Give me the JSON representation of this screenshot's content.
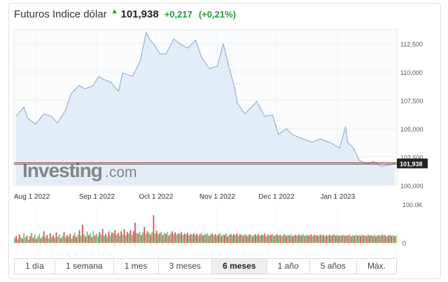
{
  "header": {
    "title": "Futuros Indice dólar",
    "price": "101,938",
    "change": "+0,217",
    "change_pct": "(+0,21%)",
    "up_color": "#1e9b35"
  },
  "watermark": {
    "main": "Investing",
    "suffix": ".com"
  },
  "tabs": [
    {
      "label": "1 día",
      "active": false
    },
    {
      "label": "1 semana",
      "active": false
    },
    {
      "label": "1 mes",
      "active": false
    },
    {
      "label": "3 meses",
      "active": false
    },
    {
      "label": "6 meses",
      "active": true
    },
    {
      "label": "1 año",
      "active": false
    },
    {
      "label": "5 años",
      "active": false
    },
    {
      "label": "Máx.",
      "active": false
    }
  ],
  "chart_data": [
    {
      "type": "area",
      "title": "",
      "ylim": [
        100000,
        113750
      ],
      "ytick_values": [
        100000,
        102500,
        105000,
        107500,
        110000,
        112500
      ],
      "ytick_labels": [
        "100,000",
        "102,500",
        "105,000",
        "107,500",
        "110,000",
        "112,500"
      ],
      "xlim": [
        "2022-07-21",
        "2023-01-31"
      ],
      "xticks": [
        {
          "date": "2022-08-01",
          "label": "Aug 1 2022"
        },
        {
          "date": "2022-09-01",
          "label": "Sep 1 2022"
        },
        {
          "date": "2022-10-01",
          "label": "Oct 1 2022"
        },
        {
          "date": "2022-11-01",
          "label": "Nov 1 2022"
        },
        {
          "date": "2022-12-01",
          "label": "Dec 1 2022"
        },
        {
          "date": "2023-01-01",
          "label": "Jan 1 2023"
        }
      ],
      "last_value": 101938,
      "last_label": "101,938",
      "line_color": "#8fb3d6",
      "fill_color": "#e3edf7",
      "series": [
        {
          "x": [
            "2022-07-22",
            "2022-07-26",
            "2022-07-28",
            "2022-08-01",
            "2022-08-05",
            "2022-08-09",
            "2022-08-12",
            "2022-08-16",
            "2022-08-19",
            "2022-08-23",
            "2022-08-26",
            "2022-08-30",
            "2022-09-02",
            "2022-09-05",
            "2022-09-08",
            "2022-09-12",
            "2022-09-14",
            "2022-09-16",
            "2022-09-19",
            "2022-09-23",
            "2022-09-26",
            "2022-09-28",
            "2022-09-30",
            "2022-10-03",
            "2022-10-06",
            "2022-10-10",
            "2022-10-13",
            "2022-10-17",
            "2022-10-21",
            "2022-10-24",
            "2022-10-28",
            "2022-11-01",
            "2022-11-04",
            "2022-11-07",
            "2022-11-10",
            "2022-11-11",
            "2022-11-15",
            "2022-11-21",
            "2022-11-25",
            "2022-11-29",
            "2022-12-02",
            "2022-12-06",
            "2022-12-09",
            "2022-12-13",
            "2022-12-16",
            "2022-12-19",
            "2022-12-23",
            "2022-12-28",
            "2023-01-02",
            "2023-01-05",
            "2023-01-06",
            "2023-01-09",
            "2023-01-12",
            "2023-01-16",
            "2023-01-19",
            "2023-01-23",
            "2023-01-27",
            "2023-01-30"
          ],
          "y": [
            106100,
            106900,
            105900,
            105400,
            106300,
            106100,
            105500,
            106600,
            108100,
            108800,
            108500,
            108800,
            109600,
            109300,
            109100,
            108300,
            109900,
            109800,
            109600,
            111000,
            113500,
            112800,
            112400,
            111600,
            111600,
            112900,
            112500,
            112100,
            112800,
            111300,
            110300,
            110500,
            112500,
            110400,
            108500,
            107300,
            106300,
            107400,
            106100,
            106200,
            104500,
            105000,
            104500,
            104200,
            104000,
            103800,
            104100,
            103800,
            103300,
            105200,
            103800,
            103300,
            102200,
            101900,
            102100,
            101700,
            101800,
            101940
          ]
        }
      ]
    },
    {
      "type": "bar",
      "title": "",
      "ylim": [
        0,
        100000
      ],
      "ytick_values": [
        0,
        100000
      ],
      "ytick_labels": [
        "0",
        "100.0K"
      ],
      "up_color": "#6fbf73",
      "down_color": "#d9534f",
      "values": [
        12000,
        18000,
        9000,
        22000,
        15000,
        11000,
        24000,
        14000,
        19000,
        8000,
        17000,
        26000,
        13000,
        21000,
        10000,
        16000,
        23000,
        12000,
        18000,
        30000,
        14000,
        20000,
        11000,
        25000,
        15000,
        19000,
        13000,
        27000,
        16000,
        22000,
        12000,
        18000,
        28000,
        14000,
        20000,
        17000,
        24000,
        11000,
        19000,
        26000,
        15000,
        21000,
        33000,
        18000,
        47000,
        22000,
        16000,
        29000,
        20000,
        25000,
        15000,
        31000,
        19000,
        24000,
        17000,
        28000,
        21000,
        36000,
        18000,
        23000,
        16000,
        30000,
        20000,
        27000,
        25000,
        33000,
        21000,
        26000,
        18000,
        30000,
        22000,
        35000,
        19000,
        28000,
        24000,
        33000,
        21000,
        30000,
        52000,
        26000,
        24000,
        29000,
        20000,
        27000,
        41000,
        23000,
        30000,
        26000,
        21000,
        28000,
        72000,
        24000,
        31000,
        22000,
        25000,
        29000,
        20000,
        26000,
        23000,
        28000,
        19000,
        24000,
        30000,
        22000,
        27000,
        21000,
        25000,
        23000,
        28000,
        20000,
        24000,
        22000,
        26000,
        19000,
        23000,
        21000,
        25000,
        20000,
        24000,
        18000,
        22000,
        26000,
        19000,
        23000,
        21000,
        25000,
        18000,
        22000,
        24000,
        20000,
        23000,
        19000,
        21000,
        25000,
        18000,
        22000,
        20000,
        24000,
        17000,
        21000,
        23000,
        19000,
        22000,
        20000,
        24000,
        18000,
        22000,
        21000,
        19000,
        23000,
        20000,
        18000,
        22000,
        21000,
        17000,
        20000,
        22000,
        19000,
        23000,
        18000,
        21000,
        20000,
        24000,
        17000,
        22000,
        19000,
        21000,
        23000,
        18000,
        20000,
        22000,
        19000,
        21000,
        17000,
        20000,
        23000,
        18000,
        21000,
        19000,
        22000,
        17000,
        20000,
        21000,
        18000,
        22000,
        19000,
        20000,
        23000,
        18000,
        21000,
        19000,
        20000,
        22000,
        18000,
        21000,
        19000,
        20000,
        18000,
        22000,
        19000,
        21000,
        17000,
        20000,
        19000,
        21000,
        18000,
        20000,
        22000,
        19000,
        21000,
        18000,
        20000,
        19000,
        21000,
        18000,
        20000,
        19000,
        22000,
        17000,
        20000,
        18000,
        21000,
        19000,
        20000,
        18000,
        21000,
        19000,
        20000,
        17000,
        21000,
        19000,
        20000,
        18000,
        21000,
        17000,
        19000,
        20000,
        18000,
        21000,
        19000,
        20000,
        16000,
        19000,
        21000,
        18000,
        20000,
        17000,
        19000
      ],
      "colors": [
        "up",
        "down",
        "up",
        "down",
        "up",
        "down",
        "up",
        "up",
        "down",
        "up",
        "down",
        "up",
        "down",
        "up",
        "down",
        "up",
        "up",
        "down",
        "up",
        "down",
        "up",
        "down",
        "up",
        "down",
        "up",
        "down",
        "up",
        "down",
        "up",
        "up",
        "down",
        "up",
        "down",
        "up",
        "down",
        "up",
        "down",
        "up",
        "down",
        "up",
        "down",
        "up",
        "down",
        "up",
        "down",
        "up",
        "down",
        "up",
        "down",
        "up",
        "down",
        "up",
        "down",
        "up",
        "up",
        "down",
        "up",
        "down",
        "up",
        "down",
        "up",
        "down",
        "up",
        "down",
        "up",
        "down",
        "up",
        "down",
        "up",
        "down",
        "up",
        "down",
        "up",
        "down",
        "up",
        "down",
        "up",
        "down",
        "down",
        "up",
        "down",
        "up",
        "down",
        "up",
        "down",
        "up",
        "down",
        "up",
        "down",
        "up",
        "down",
        "up",
        "down",
        "up",
        "down",
        "up",
        "down",
        "up",
        "down",
        "up",
        "down",
        "up",
        "down",
        "up",
        "down",
        "up",
        "down",
        "up",
        "down",
        "up",
        "down",
        "up",
        "down",
        "up",
        "down",
        "up",
        "down",
        "up",
        "down",
        "up",
        "down",
        "up",
        "down",
        "up",
        "down",
        "up",
        "down",
        "up",
        "down",
        "up",
        "down",
        "up",
        "down",
        "up",
        "down",
        "up",
        "down",
        "up",
        "down",
        "up",
        "down",
        "up",
        "down",
        "up",
        "down",
        "up",
        "down",
        "up",
        "down",
        "up",
        "down",
        "up",
        "down",
        "up",
        "down",
        "up",
        "down",
        "up",
        "down",
        "up",
        "down",
        "up",
        "down",
        "up",
        "down",
        "up",
        "down",
        "up",
        "down",
        "up",
        "down",
        "up",
        "down",
        "up",
        "down",
        "up",
        "down",
        "up",
        "down",
        "up",
        "down",
        "up",
        "down",
        "up",
        "down",
        "up",
        "down",
        "up",
        "down",
        "up",
        "down",
        "up",
        "down",
        "up",
        "down",
        "up",
        "down",
        "up",
        "down",
        "up",
        "down",
        "up",
        "down",
        "up",
        "down",
        "up",
        "down",
        "up",
        "down",
        "up",
        "down",
        "up",
        "down",
        "up",
        "down",
        "up",
        "down",
        "up",
        "down",
        "up",
        "down",
        "up",
        "down",
        "up",
        "down",
        "up",
        "down",
        "up",
        "down",
        "up",
        "down",
        "up",
        "down",
        "up",
        "down",
        "up",
        "down",
        "up",
        "down",
        "up",
        "down",
        "up",
        "down",
        "up",
        "down",
        "up",
        "down",
        "up",
        "down",
        "up",
        "down",
        "up",
        "down"
      ]
    }
  ]
}
